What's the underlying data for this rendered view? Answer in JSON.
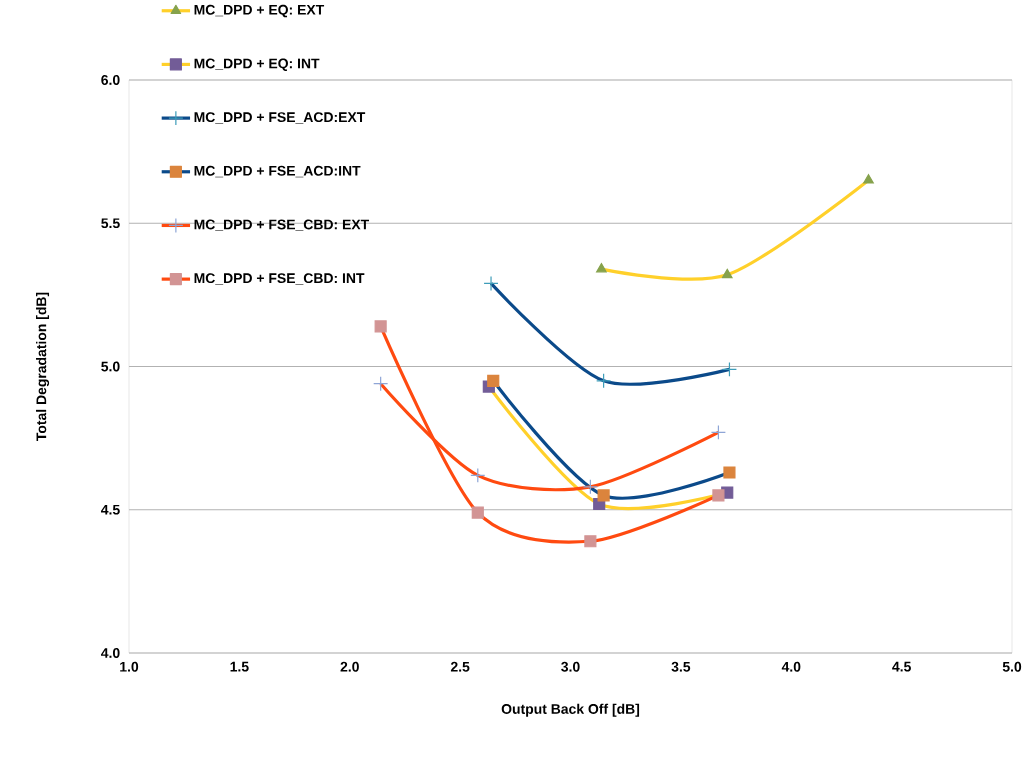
{
  "chart_data": {
    "type": "line",
    "xlabel": "Output Back Off [dB]",
    "ylabel": "Total Degradation [dB]",
    "xlim": [
      1.0,
      5.0
    ],
    "ylim": [
      4.0,
      6.0
    ],
    "xticks": [
      {
        "value": 1.0,
        "label": "1.0"
      },
      {
        "value": 1.5,
        "label": "1.5"
      },
      {
        "value": 2.0,
        "label": "2.0"
      },
      {
        "value": 2.5,
        "label": "2.5"
      },
      {
        "value": 3.0,
        "label": "3.0"
      },
      {
        "value": 3.5,
        "label": "3.5"
      },
      {
        "value": 4.0,
        "label": "4.0"
      },
      {
        "value": 4.5,
        "label": "4.5"
      },
      {
        "value": 5.0,
        "label": "5.0"
      }
    ],
    "yticks": [
      {
        "value": 4.0,
        "label": "4.0"
      },
      {
        "value": 4.5,
        "label": "4.5"
      },
      {
        "value": 5.0,
        "label": "5.0"
      },
      {
        "value": 5.5,
        "label": "5.5"
      },
      {
        "value": 6.0,
        "label": "6.0"
      }
    ],
    "grid": "y",
    "legend": "top left",
    "series": [
      {
        "name": "MC_DPD + EQ: EXT",
        "color": "#ffd02a",
        "marker": "triangle",
        "colors": [
          "#86a24c",
          "#86a24c",
          "#86a24c"
        ],
        "x": [
          3.14,
          3.71,
          4.35
        ],
        "values": [
          5.34,
          5.32,
          5.65
        ]
      },
      {
        "name": "MC_DPD + EQ: INT",
        "color": "#ffd02a",
        "marker": "square",
        "colors": [
          "#725c97",
          "#725c97",
          "#725c97"
        ],
        "x": [
          2.63,
          3.13,
          3.71
        ],
        "values": [
          4.93,
          4.52,
          4.56
        ]
      },
      {
        "name": "MC_DPD +  FSE_ACD:EXT",
        "color": "#0b4a8a",
        "marker": "cross",
        "colors": [
          "#3e9db9",
          "#3e9db9",
          "#3e9db9"
        ],
        "x": [
          2.64,
          3.15,
          3.72
        ],
        "values": [
          5.29,
          4.95,
          4.99
        ]
      },
      {
        "name": "MC_DPD + FSE_ACD:INT",
        "color": "#0b4a8a",
        "marker": "square",
        "colors": [
          "#db843d",
          "#db843d",
          "#db843d"
        ],
        "x": [
          2.65,
          3.15,
          3.72
        ],
        "values": [
          4.95,
          4.55,
          4.63
        ]
      },
      {
        "name": "MC_DPD + FSE_CBD: EXT",
        "color": "#ff4a10",
        "marker": "cross",
        "colors": [
          "#8ea5d6",
          "#8ea5d6",
          "#8ea5d6",
          "#8ea5d6"
        ],
        "x": [
          2.14,
          2.58,
          3.09,
          3.67
        ],
        "values": [
          4.94,
          4.62,
          4.58,
          4.77
        ]
      },
      {
        "name": "MC_DPD + FSE_CBD: INT",
        "color": "#ff4a10",
        "marker": "square",
        "colors": [
          "#d29494",
          "#d29494",
          "#d29494",
          "#d29494"
        ],
        "x": [
          2.14,
          2.58,
          3.09,
          3.67
        ],
        "values": [
          5.14,
          4.49,
          4.39,
          4.55
        ]
      }
    ]
  }
}
